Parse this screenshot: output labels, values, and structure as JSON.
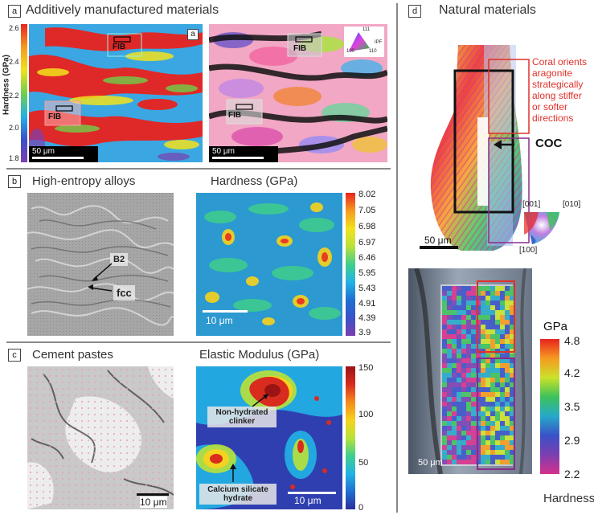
{
  "panels": {
    "a": {
      "label": "a",
      "title": "Additively manufactured materials",
      "inset_label": "a",
      "y_axis_label": "Hardness (GPa)",
      "y_ticks": [
        "2.6",
        "2.4",
        "2.2",
        "2.0",
        "1.8"
      ],
      "fib_left": "FIB",
      "fib_left_2": "FIB",
      "fib_right": "FIB",
      "fib_right_2": "FIB",
      "scale_left": "50 μm",
      "scale_right": "50 μm",
      "ipf": {
        "top": "111",
        "left": "100",
        "right": "110",
        "name": "IPF"
      }
    },
    "b": {
      "label": "b",
      "title_left": "High-entropy alloys",
      "title_right": "Hardness (GPa)",
      "tag_b2": "B2",
      "tag_fcc": "fcc",
      "scale": "10 μm",
      "colorbar_ticks": [
        "8.02",
        "7.05",
        "6.98",
        "6.97",
        "6.46",
        "5.95",
        "5.43",
        "4.91",
        "4.39",
        "3.9"
      ]
    },
    "c": {
      "label": "c",
      "title_left": "Cement pastes",
      "title_right": "Elastic Modulus (GPa)",
      "tag_clinker": "Non-hydrated clinker",
      "tag_csh": "Calcium silicate hydrate",
      "scale_left": "10 μm",
      "scale_right": "10 μm",
      "colorbar_ticks": [
        "150",
        "100",
        "50",
        "0"
      ]
    },
    "d": {
      "label": "d",
      "title": "Natural materials",
      "annotation": "Coral orients aragonite strategically along stiffer or softer directions",
      "coc": "COC",
      "scale_top": "50 μm",
      "scale_bottom": "50 μm",
      "ipf": {
        "top_left": "[001]",
        "top_right": "[010]",
        "bottom": "[100]"
      },
      "colorbar_unit": "GPa",
      "colorbar_ticks": [
        "4.8",
        "4.2",
        "3.5",
        "2.9",
        "2.2"
      ],
      "colorbar_label": "Hardness"
    }
  },
  "colors": {
    "jet": [
      "#2b2f9a",
      "#1f6fd1",
      "#22b3e6",
      "#3fcf8a",
      "#b9e23a",
      "#f7d21c",
      "#f48a1a",
      "#d92b1e",
      "#9a1414"
    ],
    "hardness_d": [
      "#d6318b",
      "#7b3fb0",
      "#3a52c8",
      "#26a9c9",
      "#3ec25a",
      "#cbe22a",
      "#f59a1f",
      "#e8231f"
    ],
    "annotation_red": "#e0312b"
  }
}
